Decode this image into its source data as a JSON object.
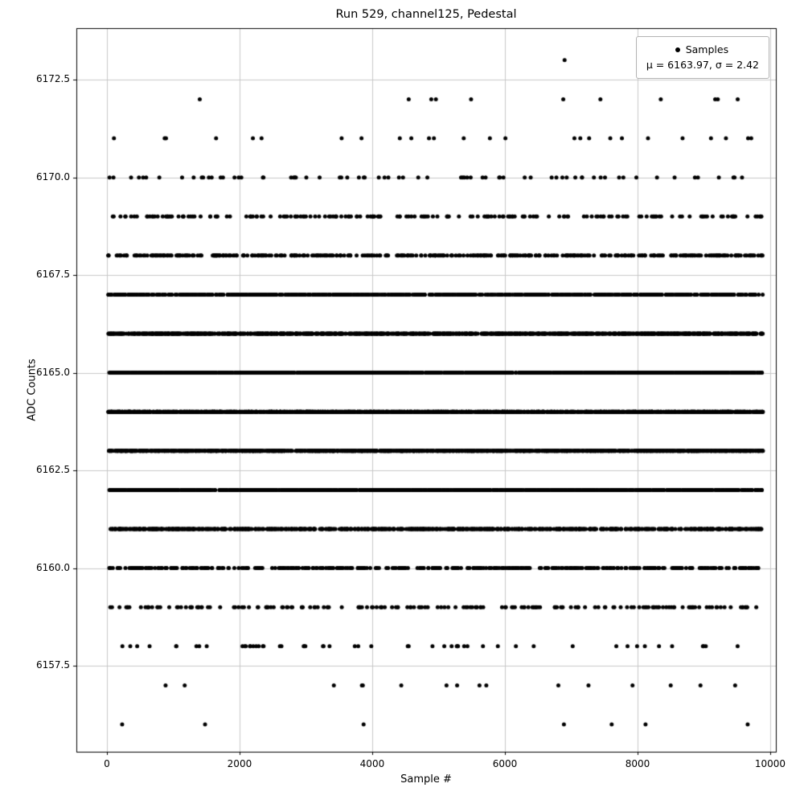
{
  "chart_data": {
    "type": "scatter",
    "title": "Run 529, channel125, Pedestal",
    "xlabel": "Sample #",
    "ylabel": "ADC Counts",
    "xlim": [
      -460,
      10085
    ],
    "ylim": [
      6155.3,
      6173.82
    ],
    "xtick_values": [
      0,
      2000,
      4000,
      6000,
      8000,
      10000
    ],
    "xtick_labels": [
      "0",
      "2000",
      "4000",
      "6000",
      "8000",
      "10000"
    ],
    "ytick_values": [
      6157.5,
      6160.0,
      6162.5,
      6165.0,
      6167.5,
      6170.0,
      6172.5
    ],
    "ytick_labels": [
      "6157.5",
      "6160.0",
      "6162.5",
      "6165.0",
      "6167.5",
      "6170.0",
      "6172.5"
    ],
    "x_data_range": [
      20,
      9890
    ],
    "grid": true,
    "grid_color": "#c8c8c8",
    "marker": {
      "name": "point-marker",
      "color": "#000000",
      "size": 2.5
    },
    "legend": {
      "position": "upper right",
      "label": "Samples",
      "stats": "μ = 6163.97, σ = 2.42"
    },
    "stats": {
      "mu": 6163.97,
      "sigma": 2.42
    },
    "levels": [
      {
        "adc": 6173,
        "x": [
          6900
        ]
      },
      {
        "adc": 6172,
        "x": [
          1400,
          4550,
          4890,
          4960,
          5490,
          6880,
          7440,
          8350,
          9170,
          9210,
          9510
        ]
      },
      {
        "adc": 6171,
        "count": 26
      },
      {
        "adc": 6170,
        "count": 72
      },
      {
        "adc": 6169,
        "count": 190
      },
      {
        "adc": 6168,
        "count": 410
      },
      {
        "adc": 6167,
        "count": 800
      },
      {
        "adc": 6166,
        "count": 1250
      },
      {
        "adc": 6165,
        "count": 1600
      },
      {
        "adc": 6164,
        "count": 1700
      },
      {
        "adc": 6163,
        "count": 1600
      },
      {
        "adc": 6162,
        "count": 1250
      },
      {
        "adc": 6161,
        "count": 850
      },
      {
        "adc": 6160,
        "count": 430
      },
      {
        "adc": 6159,
        "count": 190
      },
      {
        "adc": 6158,
        "count": 55
      },
      {
        "adc": 6157,
        "count": 16
      },
      {
        "adc": 6156,
        "x": [
          230,
          1480,
          3870,
          6890,
          7610,
          8120,
          9660
        ]
      }
    ]
  }
}
